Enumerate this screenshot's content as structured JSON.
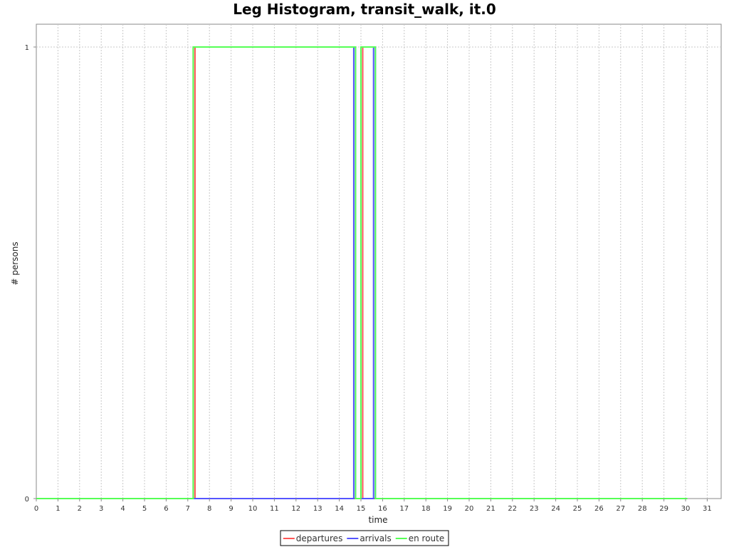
{
  "chart_data": {
    "type": "line",
    "title": "Leg Histogram, transit_walk, it.0",
    "xlabel": "time",
    "ylabel": "# persons",
    "xlim": [
      0,
      31.5
    ],
    "ylim": [
      0,
      1.05
    ],
    "x_ticks": [
      0,
      1,
      2,
      3,
      4,
      5,
      6,
      7,
      8,
      9,
      10,
      11,
      12,
      13,
      14,
      15,
      16,
      17,
      18,
      19,
      20,
      21,
      22,
      23,
      24,
      25,
      26,
      27,
      28,
      29,
      30,
      31
    ],
    "y_ticks": [
      0,
      1
    ],
    "grid": true,
    "legend_position": "bottom",
    "series": [
      {
        "name": "departures",
        "color": "#ff5555",
        "x": [
          0,
          7.25,
          7.25,
          7.333,
          7.333,
          15.0,
          15.0,
          15.083,
          15.083,
          30.083
        ],
        "y": [
          0,
          0,
          1,
          1,
          0,
          0,
          1,
          1,
          0,
          0
        ]
      },
      {
        "name": "arrivals",
        "color": "#5555ff",
        "x": [
          0,
          14.667,
          14.667,
          14.75,
          14.75,
          15.583,
          15.583,
          15.667,
          15.667,
          30.083
        ],
        "y": [
          0,
          0,
          1,
          1,
          0,
          0,
          1,
          1,
          0,
          0
        ]
      },
      {
        "name": "en route",
        "color": "#55ff55",
        "x": [
          0,
          7.25,
          7.25,
          14.75,
          14.75,
          15.0,
          15.0,
          15.667,
          15.667,
          30.083
        ],
        "y": [
          0,
          0,
          1,
          1,
          0,
          0,
          1,
          1,
          0,
          0
        ]
      }
    ]
  }
}
